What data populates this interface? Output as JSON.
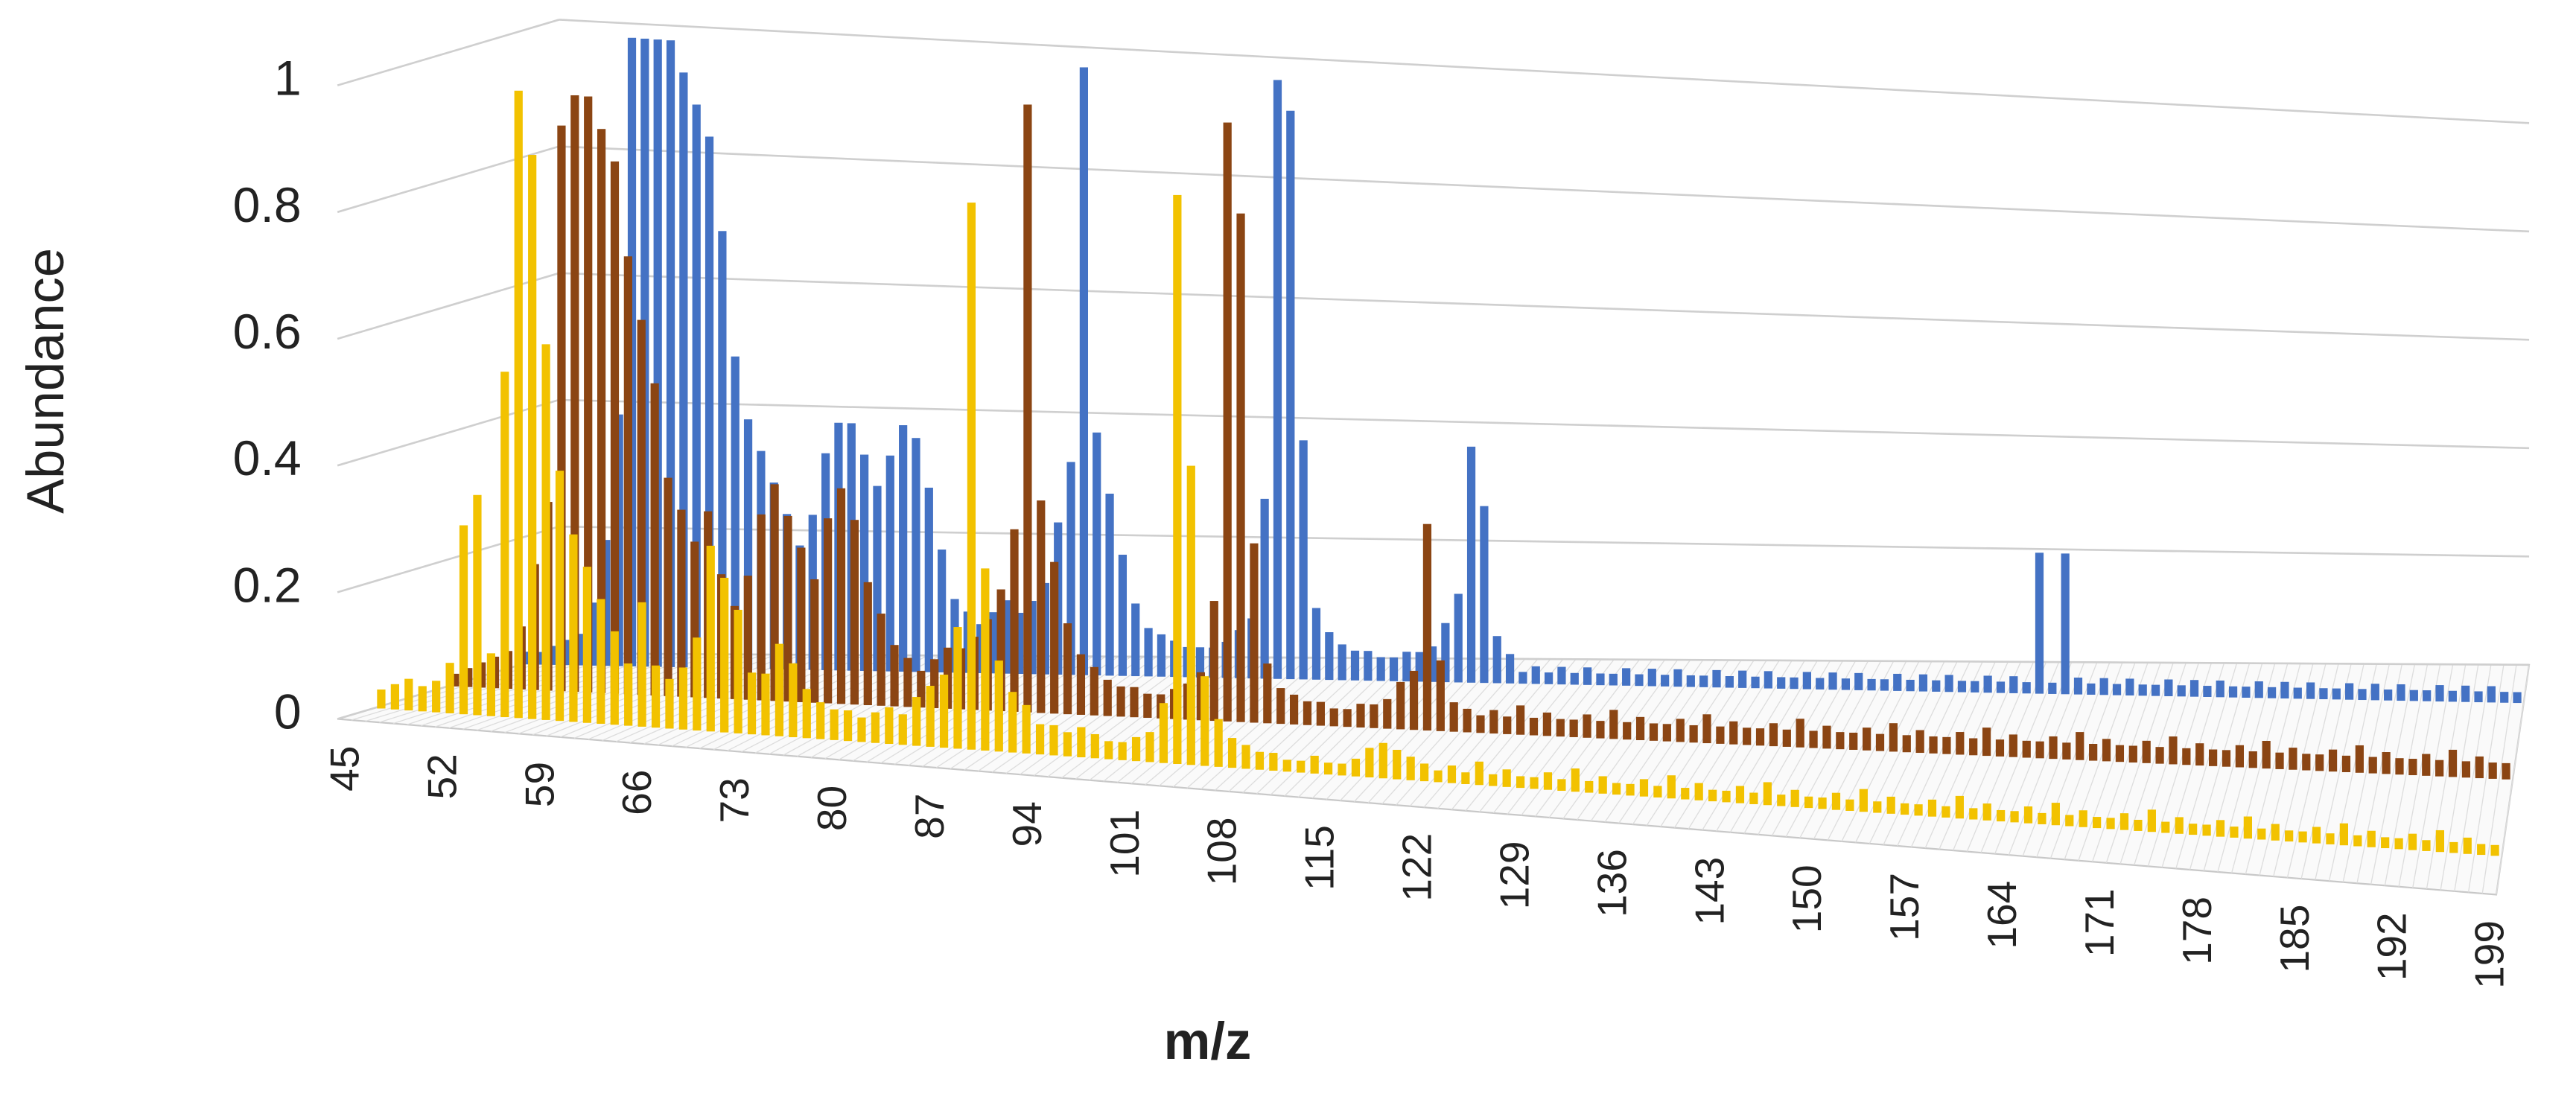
{
  "chart_data": {
    "type": "bar3d",
    "x_label": "m/z",
    "y_label": "Abundance",
    "ylim": [
      0,
      1
    ],
    "yticks": [
      0,
      0.2,
      0.4,
      0.6,
      0.8,
      1
    ],
    "grid": true,
    "categories": [
      45,
      null,
      null,
      null,
      null,
      null,
      null,
      52,
      null,
      null,
      null,
      null,
      null,
      null,
      59,
      null,
      null,
      null,
      null,
      null,
      null,
      66,
      null,
      null,
      null,
      null,
      null,
      null,
      73,
      null,
      null,
      null,
      null,
      null,
      null,
      80,
      null,
      null,
      null,
      null,
      null,
      null,
      87,
      null,
      null,
      null,
      null,
      null,
      null,
      94,
      null,
      null,
      null,
      null,
      null,
      null,
      101,
      null,
      null,
      null,
      null,
      null,
      null,
      108,
      null,
      null,
      null,
      null,
      null,
      null,
      115,
      null,
      null,
      null,
      null,
      null,
      null,
      122,
      null,
      null,
      null,
      null,
      null,
      null,
      129,
      null,
      null,
      null,
      null,
      null,
      null,
      136,
      null,
      null,
      null,
      null,
      null,
      null,
      143,
      null,
      null,
      null,
      null,
      null,
      null,
      150,
      null,
      null,
      null,
      null,
      null,
      null,
      157,
      null,
      null,
      null,
      null,
      null,
      null,
      164,
      null,
      null,
      null,
      null,
      null,
      null,
      171,
      null,
      null,
      null,
      null,
      null,
      null,
      178,
      null,
      null,
      null,
      null,
      null,
      null,
      185,
      null,
      null,
      null,
      null,
      null,
      null,
      192,
      null,
      null,
      null,
      null,
      null,
      null,
      199
    ],
    "series": [
      {
        "color": "#f2c200",
        "values": [
          0.03,
          0.04,
          0.05,
          0.04,
          0.05,
          0.08,
          0.3,
          0.35,
          0.1,
          0.55,
          1,
          0.9,
          0.6,
          0.4,
          0.3,
          0.25,
          0.2,
          0.15,
          0.1,
          0.2,
          0.1,
          0.08,
          0.1,
          0.15,
          0.3,
          0.25,
          0.2,
          0.1,
          0.1,
          0.15,
          0.12,
          0.08,
          0.06,
          0.05,
          0.05,
          0.04,
          0.05,
          0.06,
          0.05,
          0.08,
          0.1,
          0.12,
          0.2,
          0.9,
          0.3,
          0.15,
          0.1,
          0.08,
          0.05,
          0.05,
          0.04,
          0.05,
          0.04,
          0.03,
          0.03,
          0.04,
          0.05,
          0.1,
          0.95,
          0.5,
          0.15,
          0.08,
          0.05,
          0.04,
          0.03,
          0.03,
          0.02,
          0.02,
          0.03,
          0.02,
          0.02,
          0.03,
          0.05,
          0.06,
          0.05,
          0.04,
          0.03,
          0.02,
          0.03,
          0.02,
          0.04,
          0.02,
          0.03,
          0.02,
          0.02,
          0.03,
          0.02,
          0.04,
          0.02,
          0.03,
          0.02,
          0.02,
          0.03,
          0.02,
          0.04,
          0.02,
          0.03,
          0.02,
          0.02,
          0.03,
          0.02,
          0.04,
          0.02,
          0.03,
          0.02,
          0.02,
          0.03,
          0.02,
          0.04,
          0.02,
          0.03,
          0.02,
          0.02,
          0.03,
          0.02,
          0.04,
          0.02,
          0.03,
          0.02,
          0.02,
          0.03,
          0.02,
          0.04,
          0.02,
          0.03,
          0.02,
          0.02,
          0.03,
          0.02,
          0.04,
          0.02,
          0.03,
          0.02,
          0.02,
          0.03,
          0.02,
          0.04,
          0.02,
          0.03,
          0.02,
          0.02,
          0.03,
          0.02,
          0.04,
          0.02,
          0.03,
          0.02,
          0.02,
          0.03,
          0.02,
          0.04,
          0.02,
          0.03,
          0.02,
          0.02
        ]
      },
      {
        "color": "#8b4513",
        "values": [
          0.02,
          0.03,
          0.04,
          0.05,
          0.06,
          0.1,
          0.2,
          0.3,
          0.9,
          0.95,
          0.95,
          0.9,
          0.85,
          0.7,
          0.6,
          0.5,
          0.35,
          0.3,
          0.25,
          0.3,
          0.2,
          0.15,
          0.2,
          0.3,
          0.35,
          0.3,
          0.25,
          0.2,
          0.3,
          0.35,
          0.3,
          0.2,
          0.15,
          0.1,
          0.08,
          0.06,
          0.08,
          0.1,
          0.1,
          0.12,
          0.15,
          0.2,
          0.3,
          1,
          0.35,
          0.25,
          0.15,
          0.1,
          0.08,
          0.06,
          0.05,
          0.05,
          0.04,
          0.04,
          0.05,
          0.06,
          0.08,
          0.2,
          1,
          0.85,
          0.3,
          0.1,
          0.06,
          0.05,
          0.04,
          0.04,
          0.03,
          0.03,
          0.04,
          0.04,
          0.05,
          0.08,
          0.1,
          0.35,
          0.12,
          0.05,
          0.04,
          0.03,
          0.04,
          0.03,
          0.05,
          0.03,
          0.04,
          0.03,
          0.03,
          0.04,
          0.03,
          0.05,
          0.03,
          0.04,
          0.03,
          0.03,
          0.04,
          0.03,
          0.05,
          0.03,
          0.04,
          0.03,
          0.03,
          0.04,
          0.03,
          0.05,
          0.03,
          0.04,
          0.03,
          0.03,
          0.04,
          0.03,
          0.05,
          0.03,
          0.04,
          0.03,
          0.03,
          0.04,
          0.03,
          0.05,
          0.03,
          0.04,
          0.03,
          0.03,
          0.04,
          0.03,
          0.05,
          0.03,
          0.04,
          0.03,
          0.03,
          0.04,
          0.03,
          0.05,
          0.03,
          0.04,
          0.03,
          0.03,
          0.04,
          0.03,
          0.05,
          0.03,
          0.04,
          0.03,
          0.03,
          0.04,
          0.03,
          0.05,
          0.03,
          0.04,
          0.03,
          0.03,
          0.04,
          0.03,
          0.05,
          0.03,
          0.04,
          0.03,
          0.03
        ]
      },
      {
        "color": "#4472c4",
        "values": [
          0.02,
          0.02,
          0.03,
          0.04,
          0.05,
          0.1,
          0.2,
          0.4,
          1,
          1,
          1,
          1,
          0.95,
          0.9,
          0.85,
          0.7,
          0.5,
          0.4,
          0.35,
          0.3,
          0.25,
          0.2,
          0.25,
          0.35,
          0.4,
          0.4,
          0.35,
          0.3,
          0.35,
          0.4,
          0.38,
          0.3,
          0.2,
          0.12,
          0.1,
          0.08,
          0.1,
          0.12,
          0.1,
          0.12,
          0.15,
          0.25,
          0.35,
          1,
          0.4,
          0.3,
          0.2,
          0.12,
          0.08,
          0.07,
          0.06,
          0.05,
          0.05,
          0.05,
          0.06,
          0.08,
          0.1,
          0.3,
          1,
          0.95,
          0.4,
          0.12,
          0.08,
          0.06,
          0.05,
          0.05,
          0.04,
          0.04,
          0.05,
          0.05,
          0.06,
          0.1,
          0.15,
          0.4,
          0.3,
          0.08,
          0.05,
          0.02,
          0.03,
          0.02,
          0.03,
          0.02,
          0.03,
          0.02,
          0.02,
          0.03,
          0.02,
          0.03,
          0.02,
          0.03,
          0.02,
          0.02,
          0.03,
          0.02,
          0.03,
          0.02,
          0.03,
          0.02,
          0.02,
          0.03,
          0.02,
          0.03,
          0.02,
          0.03,
          0.02,
          0.02,
          0.03,
          0.02,
          0.03,
          0.02,
          0.03,
          0.02,
          0.02,
          0.03,
          0.02,
          0.03,
          0.02,
          0.25,
          0.02,
          0.25,
          0.03,
          0.02,
          0.03,
          0.02,
          0.03,
          0.02,
          0.02,
          0.03,
          0.02,
          0.03,
          0.02,
          0.03,
          0.02,
          0.02,
          0.03,
          0.02,
          0.03,
          0.02,
          0.03,
          0.02,
          0.02,
          0.03,
          0.02,
          0.03,
          0.02,
          0.03,
          0.02,
          0.02,
          0.03,
          0.02,
          0.03,
          0.02,
          0.03,
          0.02,
          0.02
        ]
      }
    ]
  }
}
